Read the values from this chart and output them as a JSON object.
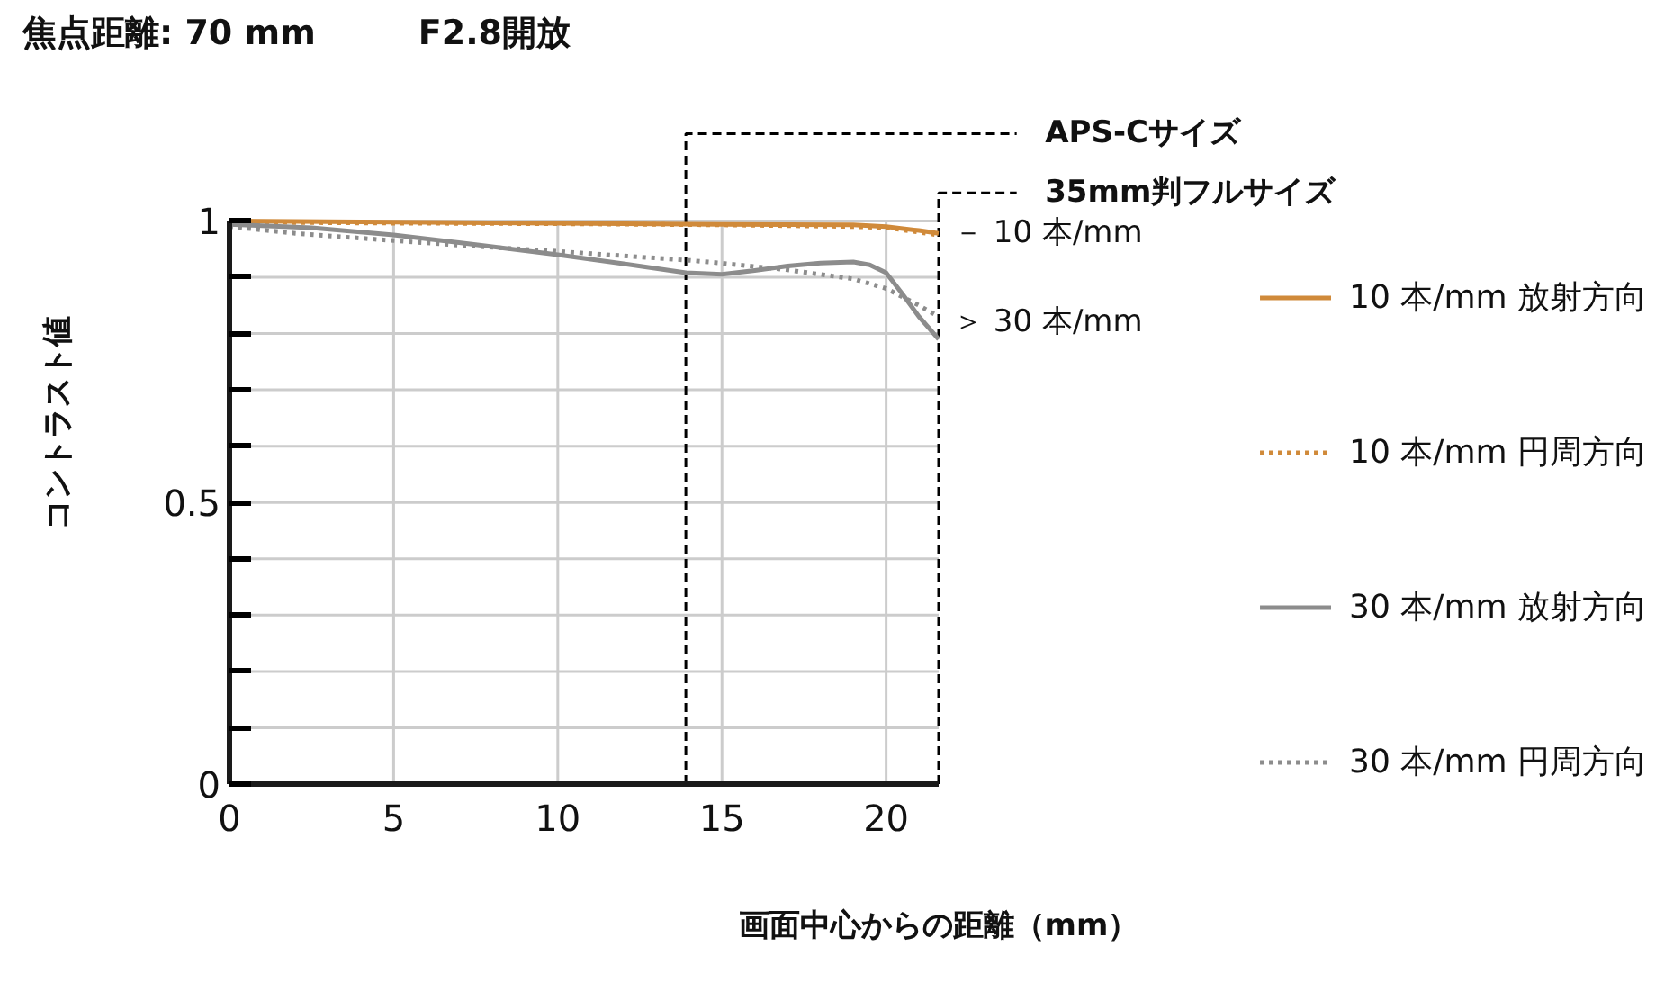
{
  "chart_data": {
    "type": "line",
    "title": "焦点距離: 70 mm　　　F2.8開放",
    "xlabel": "画面中心からの距離（mm）",
    "ylabel": "コントラスト値",
    "xlim": [
      0,
      21.6
    ],
    "ylim": [
      0,
      1
    ],
    "xticks": [
      0,
      5,
      10,
      15,
      20
    ],
    "yticks": [
      0,
      {
        "value": 0.1,
        "label": null
      },
      {
        "value": 0.2,
        "label": null
      },
      {
        "value": 0.3,
        "label": null
      },
      {
        "value": 0.4,
        "label": null
      },
      0.5,
      {
        "value": 0.6,
        "label": null
      },
      {
        "value": 0.7,
        "label": null
      },
      {
        "value": 0.8,
        "label": null
      },
      {
        "value": 0.9,
        "label": null
      },
      1
    ],
    "grid": true,
    "legend": "right",
    "series": [
      {
        "name": "10 本/mm 放射方向",
        "color": "#d08a3a",
        "line_style": "solid",
        "x": [
          0,
          5,
          10,
          15,
          19,
          20,
          21,
          21.6
        ],
        "values": [
          1.0,
          0.998,
          0.996,
          0.994,
          0.993,
          0.99,
          0.983,
          0.978
        ]
      },
      {
        "name": "10 本/mm 円周方向",
        "color": "#d08a3a",
        "line_style": "dotted",
        "x": [
          0,
          5,
          10,
          15,
          19,
          20,
          21,
          21.6
        ],
        "values": [
          0.998,
          0.996,
          0.995,
          0.993,
          0.99,
          0.988,
          0.98,
          0.975
        ]
      },
      {
        "name": "30 本/mm 放射方向",
        "color": "#8c8c8c",
        "line_style": "solid",
        "x": [
          0,
          2.5,
          5,
          7.5,
          10,
          12,
          13.9,
          15,
          16,
          17,
          18,
          19,
          19.5,
          20,
          20.5,
          21,
          21.6
        ],
        "values": [
          0.994,
          0.988,
          0.975,
          0.958,
          0.94,
          0.924,
          0.908,
          0.905,
          0.912,
          0.92,
          0.925,
          0.927,
          0.922,
          0.908,
          0.87,
          0.83,
          0.79
        ]
      },
      {
        "name": "30 本/mm 円周方向",
        "color": "#8c8c8c",
        "line_style": "dotted",
        "x": [
          0,
          2,
          5,
          7.5,
          10,
          12,
          14,
          15,
          17,
          19,
          20,
          21,
          21.6
        ],
        "values": [
          0.99,
          0.978,
          0.965,
          0.955,
          0.946,
          0.938,
          0.93,
          0.925,
          0.913,
          0.897,
          0.88,
          0.85,
          0.83
        ]
      }
    ],
    "ref_lines": [
      {
        "axis": "x",
        "value": 13.9,
        "label": "APS-Cサイズ",
        "line_style": "dashed",
        "color": "#000000"
      },
      {
        "axis": "x",
        "value": 21.6,
        "label": "35mm判フルサイズ",
        "line_style": "dashed",
        "color": "#000000"
      }
    ],
    "annotations": [
      {
        "text": "－ 10 本/mm",
        "x": 21.6,
        "y": 0.978
      },
      {
        "text": "＞ 30 本/mm",
        "x": 21.6,
        "y": 0.82
      }
    ]
  }
}
